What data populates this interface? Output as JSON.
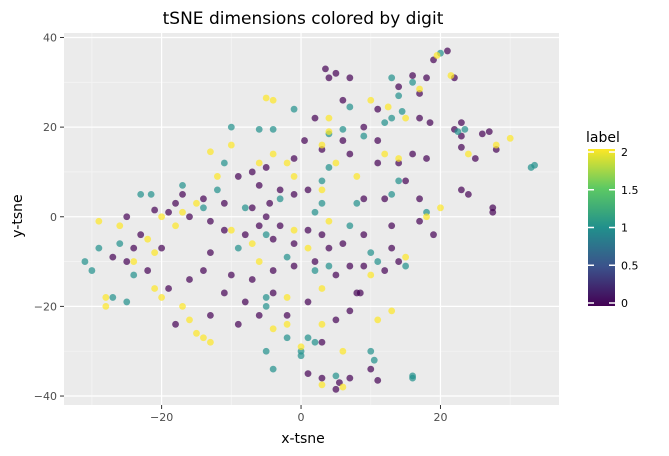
{
  "chart_data": {
    "type": "scatter",
    "title": "tSNE dimensions colored by digit",
    "xlabel": "x-tsne",
    "ylabel": "y-tsne",
    "xlim": [
      -34,
      37
    ],
    "ylim": [
      -42,
      41
    ],
    "xticks": [
      -20,
      0,
      20
    ],
    "xtick_labels": [
      "−20",
      "0",
      "20"
    ],
    "yticks": [
      -40,
      -20,
      0,
      20,
      40
    ],
    "ytick_labels": [
      "−40",
      "−20",
      "0",
      "20",
      "40"
    ],
    "grid": true,
    "legend": {
      "title": "label",
      "position": "right",
      "breaks": [
        0,
        0.5,
        1,
        1.5,
        2
      ],
      "break_labels": [
        "0",
        "0.5",
        "1",
        "1.5",
        "2"
      ],
      "range": [
        0,
        2
      ]
    },
    "colors": {
      "panel_background": "#ebebeb",
      "grid_major": "#ffffff",
      "grid_minor": "#f4f4f4",
      "label_0": "#440154",
      "label_1": "#21908c",
      "label_2": "#fde725"
    },
    "points": [
      {
        "x": 3.5,
        "y": 33,
        "label": 0
      },
      {
        "x": 5,
        "y": 32,
        "label": 0
      },
      {
        "x": 7,
        "y": 31,
        "label": 0
      },
      {
        "x": 4,
        "y": 31,
        "label": 0
      },
      {
        "x": 16,
        "y": 31.5,
        "label": 0
      },
      {
        "x": 18,
        "y": 31,
        "label": 0
      },
      {
        "x": 21,
        "y": 37,
        "label": 0
      },
      {
        "x": 19,
        "y": 35,
        "label": 0
      },
      {
        "x": 22,
        "y": 31,
        "label": 0
      },
      {
        "x": 17,
        "y": 27.5,
        "label": 0
      },
      {
        "x": 14,
        "y": 29,
        "label": 0
      },
      {
        "x": 11,
        "y": 24,
        "label": 0
      },
      {
        "x": 6,
        "y": 26,
        "label": 0
      },
      {
        "x": 2,
        "y": 22,
        "label": 0
      },
      {
        "x": 9,
        "y": 20,
        "label": 0
      },
      {
        "x": 17,
        "y": 22,
        "label": 0
      },
      {
        "x": 18.5,
        "y": 21,
        "label": 0
      },
      {
        "x": 22,
        "y": 19.5,
        "label": 0
      },
      {
        "x": 23,
        "y": 21,
        "label": 0
      },
      {
        "x": 23,
        "y": 18,
        "label": 0
      },
      {
        "x": 26,
        "y": 18.5,
        "label": 0
      },
      {
        "x": 27,
        "y": 19,
        "label": 0
      },
      {
        "x": 28,
        "y": 15,
        "label": 0
      },
      {
        "x": 25,
        "y": 13,
        "label": 0
      },
      {
        "x": 23,
        "y": 15.5,
        "label": 0
      },
      {
        "x": 11,
        "y": 17,
        "label": 0
      },
      {
        "x": 6,
        "y": 17,
        "label": 0
      },
      {
        "x": 7,
        "y": 14,
        "label": 0
      },
      {
        "x": 16,
        "y": 14,
        "label": 0
      },
      {
        "x": 18,
        "y": 13,
        "label": 0
      },
      {
        "x": 14,
        "y": 12,
        "label": 0
      },
      {
        "x": 11,
        "y": 12,
        "label": 0
      },
      {
        "x": 0.5,
        "y": 17,
        "label": 0
      },
      {
        "x": 3,
        "y": 15,
        "label": 0
      },
      {
        "x": -1,
        "y": 13,
        "label": 0
      },
      {
        "x": -5,
        "y": 11,
        "label": 0
      },
      {
        "x": -7,
        "y": 10,
        "label": 0
      },
      {
        "x": -9,
        "y": 9,
        "label": 0
      },
      {
        "x": -6,
        "y": 7,
        "label": 0
      },
      {
        "x": -3,
        "y": 6,
        "label": 0
      },
      {
        "x": -1,
        "y": 5,
        "label": 0
      },
      {
        "x": 1,
        "y": 6,
        "label": 0
      },
      {
        "x": -4.5,
        "y": 3,
        "label": 0
      },
      {
        "x": -7,
        "y": 2,
        "label": 0
      },
      {
        "x": -11,
        "y": 3,
        "label": 0
      },
      {
        "x": -14,
        "y": 4,
        "label": 0
      },
      {
        "x": -17,
        "y": 5,
        "label": 0
      },
      {
        "x": -18,
        "y": 3,
        "label": 0
      },
      {
        "x": -19,
        "y": 1,
        "label": 0
      },
      {
        "x": -16,
        "y": 0,
        "label": 0
      },
      {
        "x": -13,
        "y": -1,
        "label": 0
      },
      {
        "x": -11,
        "y": -3,
        "label": 0
      },
      {
        "x": -8,
        "y": -4,
        "label": 0
      },
      {
        "x": -6,
        "y": -2,
        "label": 0
      },
      {
        "x": -5,
        "y": 0,
        "label": 0
      },
      {
        "x": -3,
        "y": -2,
        "label": 0
      },
      {
        "x": -4,
        "y": -5,
        "label": 0
      },
      {
        "x": -1,
        "y": -6,
        "label": 0
      },
      {
        "x": 1,
        "y": -3,
        "label": 0
      },
      {
        "x": 3,
        "y": -4,
        "label": 0
      },
      {
        "x": 4,
        "y": -7,
        "label": 0
      },
      {
        "x": 6,
        "y": -6,
        "label": 0
      },
      {
        "x": 9,
        "y": -4,
        "label": 0
      },
      {
        "x": 13,
        "y": -2,
        "label": 0
      },
      {
        "x": 17,
        "y": -1,
        "label": 0
      },
      {
        "x": 19,
        "y": -4,
        "label": 0
      },
      {
        "x": 13,
        "y": -7,
        "label": 0
      },
      {
        "x": 14,
        "y": -10,
        "label": 0
      },
      {
        "x": 12,
        "y": -12,
        "label": 0
      },
      {
        "x": 9,
        "y": -11,
        "label": 0
      },
      {
        "x": 7,
        "y": -11,
        "label": 0
      },
      {
        "x": 5,
        "y": -13,
        "label": 0
      },
      {
        "x": 2,
        "y": -10,
        "label": 0
      },
      {
        "x": -1,
        "y": -11,
        "label": 0
      },
      {
        "x": -4,
        "y": -12,
        "label": 0
      },
      {
        "x": -7,
        "y": -14,
        "label": 0
      },
      {
        "x": -10,
        "y": -13,
        "label": 0
      },
      {
        "x": -14,
        "y": -12,
        "label": 0
      },
      {
        "x": -16,
        "y": -14,
        "label": 0
      },
      {
        "x": -19,
        "y": -16,
        "label": 0
      },
      {
        "x": -22,
        "y": -12,
        "label": 0
      },
      {
        "x": -25,
        "y": -10,
        "label": 0
      },
      {
        "x": -27,
        "y": -9,
        "label": 0
      },
      {
        "x": -24,
        "y": -7,
        "label": 0
      },
      {
        "x": -23,
        "y": -4,
        "label": 0
      },
      {
        "x": -21,
        "y": 1.5,
        "label": 0
      },
      {
        "x": -25,
        "y": 0,
        "label": 0
      },
      {
        "x": -20,
        "y": -7,
        "label": 0
      },
      {
        "x": -13,
        "y": -8,
        "label": 0
      },
      {
        "x": -11,
        "y": -17,
        "label": 0
      },
      {
        "x": -8,
        "y": -19,
        "label": 0
      },
      {
        "x": -6,
        "y": -22,
        "label": 0
      },
      {
        "x": -9,
        "y": -24,
        "label": 0
      },
      {
        "x": -13,
        "y": -22,
        "label": 0
      },
      {
        "x": -18,
        "y": -24,
        "label": 0
      },
      {
        "x": -4,
        "y": -17,
        "label": 0
      },
      {
        "x": -2,
        "y": -22,
        "label": 0
      },
      {
        "x": 1,
        "y": -19,
        "label": 0
      },
      {
        "x": 5,
        "y": -23,
        "label": 0
      },
      {
        "x": 7,
        "y": -21,
        "label": 0
      },
      {
        "x": 8,
        "y": -17,
        "label": 0
      },
      {
        "x": 8.5,
        "y": -17,
        "label": 0
      },
      {
        "x": 3,
        "y": -28,
        "label": 0
      },
      {
        "x": 1,
        "y": -35,
        "label": 0
      },
      {
        "x": 3,
        "y": -36,
        "label": 0
      },
      {
        "x": 5.5,
        "y": -37,
        "label": 0
      },
      {
        "x": 7,
        "y": -36,
        "label": 0
      },
      {
        "x": 10,
        "y": -34,
        "label": 0
      },
      {
        "x": 11,
        "y": -36.5,
        "label": 0
      },
      {
        "x": 5,
        "y": -38.5,
        "label": 0
      },
      {
        "x": 24,
        "y": 5,
        "label": 0
      },
      {
        "x": 23,
        "y": 6,
        "label": 0
      },
      {
        "x": 27.5,
        "y": 2,
        "label": 0
      },
      {
        "x": 27.5,
        "y": 1,
        "label": 0
      },
      {
        "x": 15,
        "y": 8,
        "label": 0
      },
      {
        "x": 17,
        "y": 4,
        "label": 0
      },
      {
        "x": 12,
        "y": 4,
        "label": 0
      },
      {
        "x": 9,
        "y": 4,
        "label": 0
      },
      {
        "x": 13,
        "y": 31,
        "label": 1
      },
      {
        "x": 20,
        "y": 36.5,
        "label": 1
      },
      {
        "x": 16,
        "y": 30,
        "label": 1
      },
      {
        "x": 14,
        "y": 27,
        "label": 1
      },
      {
        "x": 7,
        "y": 24.5,
        "label": 1
      },
      {
        "x": 14.5,
        "y": 23.5,
        "label": 1
      },
      {
        "x": 13,
        "y": 22,
        "label": 1
      },
      {
        "x": 12,
        "y": 21,
        "label": 1
      },
      {
        "x": 6,
        "y": 19.5,
        "label": 1
      },
      {
        "x": 9,
        "y": 18,
        "label": 1
      },
      {
        "x": 4,
        "y": 18.5,
        "label": 1
      },
      {
        "x": 22.5,
        "y": 19,
        "label": 1
      },
      {
        "x": 23.5,
        "y": 19.5,
        "label": 1
      },
      {
        "x": 33.5,
        "y": 11.5,
        "label": 1
      },
      {
        "x": 33,
        "y": 11,
        "label": 1
      },
      {
        "x": 14,
        "y": 8,
        "label": 1
      },
      {
        "x": 13,
        "y": 5,
        "label": 1
      },
      {
        "x": 8,
        "y": 3,
        "label": 1
      },
      {
        "x": 4,
        "y": 11,
        "label": 1
      },
      {
        "x": 3,
        "y": 8,
        "label": 1
      },
      {
        "x": 3,
        "y": 3,
        "label": 1
      },
      {
        "x": 2,
        "y": 1,
        "label": 1
      },
      {
        "x": -10,
        "y": 20,
        "label": 1
      },
      {
        "x": -6,
        "y": 19.5,
        "label": 1
      },
      {
        "x": -4,
        "y": 19.5,
        "label": 1
      },
      {
        "x": -11,
        "y": 12,
        "label": 1
      },
      {
        "x": -17,
        "y": 7,
        "label": 1
      },
      {
        "x": -23,
        "y": 5,
        "label": 1
      },
      {
        "x": -21.5,
        "y": 5,
        "label": 1
      },
      {
        "x": -14,
        "y": 2,
        "label": 1
      },
      {
        "x": -12,
        "y": 6,
        "label": 1
      },
      {
        "x": -8,
        "y": 2,
        "label": 1
      },
      {
        "x": -3,
        "y": 4,
        "label": 1
      },
      {
        "x": -5,
        "y": -4,
        "label": 1
      },
      {
        "x": -9,
        "y": -7,
        "label": 1
      },
      {
        "x": -2,
        "y": -9,
        "label": 1
      },
      {
        "x": 2,
        "y": -12,
        "label": 1
      },
      {
        "x": 4,
        "y": -11,
        "label": 1
      },
      {
        "x": 7,
        "y": -2,
        "label": 1
      },
      {
        "x": 10,
        "y": -8,
        "label": 1
      },
      {
        "x": 11,
        "y": -10,
        "label": 1
      },
      {
        "x": 15,
        "y": -11,
        "label": 1
      },
      {
        "x": 18,
        "y": 1,
        "label": 1
      },
      {
        "x": -31,
        "y": -10,
        "label": 1
      },
      {
        "x": -30,
        "y": -12,
        "label": 1
      },
      {
        "x": -29,
        "y": -7,
        "label": 1
      },
      {
        "x": -26,
        "y": -6,
        "label": 1
      },
      {
        "x": -24,
        "y": -13,
        "label": 1
      },
      {
        "x": -27,
        "y": -18,
        "label": 1
      },
      {
        "x": -25,
        "y": -19,
        "label": 1
      },
      {
        "x": -5,
        "y": -18,
        "label": 1
      },
      {
        "x": -5,
        "y": -20,
        "label": 1
      },
      {
        "x": -2,
        "y": -27,
        "label": 1
      },
      {
        "x": 1,
        "y": -27,
        "label": 1
      },
      {
        "x": 2,
        "y": -28,
        "label": 1
      },
      {
        "x": -5,
        "y": -30,
        "label": 1
      },
      {
        "x": -4,
        "y": -34,
        "label": 1
      },
      {
        "x": 0,
        "y": -30,
        "label": 1
      },
      {
        "x": 0,
        "y": -31,
        "label": 1
      },
      {
        "x": 5,
        "y": -35.5,
        "label": 1
      },
      {
        "x": 10,
        "y": -30,
        "label": 1
      },
      {
        "x": 10.5,
        "y": -32,
        "label": 1
      },
      {
        "x": 16,
        "y": -36,
        "label": 1
      },
      {
        "x": 16,
        "y": -35.5,
        "label": 1
      },
      {
        "x": -1,
        "y": 24,
        "label": 1
      },
      {
        "x": -5,
        "y": 26.5,
        "label": 2
      },
      {
        "x": -4,
        "y": 26,
        "label": 2
      },
      {
        "x": 10,
        "y": 26,
        "label": 2
      },
      {
        "x": 12.5,
        "y": 24.5,
        "label": 2
      },
      {
        "x": 17,
        "y": 28.5,
        "label": 2
      },
      {
        "x": 19.5,
        "y": 36,
        "label": 2
      },
      {
        "x": 21.5,
        "y": 31.5,
        "label": 2
      },
      {
        "x": 15,
        "y": 22,
        "label": 2
      },
      {
        "x": 4,
        "y": 22,
        "label": 2
      },
      {
        "x": 4,
        "y": 19,
        "label": 2
      },
      {
        "x": 3,
        "y": 16,
        "label": 2
      },
      {
        "x": 5,
        "y": 12,
        "label": 2
      },
      {
        "x": 3,
        "y": 6,
        "label": 2
      },
      {
        "x": -1,
        "y": 9,
        "label": 2
      },
      {
        "x": -2,
        "y": 12,
        "label": 2
      },
      {
        "x": -4,
        "y": 14,
        "label": 2
      },
      {
        "x": -6,
        "y": 12,
        "label": 2
      },
      {
        "x": -10,
        "y": 16,
        "label": 2
      },
      {
        "x": -13,
        "y": 14.5,
        "label": 2
      },
      {
        "x": -12,
        "y": 9,
        "label": 2
      },
      {
        "x": -15,
        "y": 3,
        "label": 2
      },
      {
        "x": -17,
        "y": 1,
        "label": 2
      },
      {
        "x": -18,
        "y": -2,
        "label": 2
      },
      {
        "x": -20,
        "y": 0,
        "label": 2
      },
      {
        "x": -22,
        "y": -5,
        "label": 2
      },
      {
        "x": -21,
        "y": -8,
        "label": 2
      },
      {
        "x": -24,
        "y": -10,
        "label": 2
      },
      {
        "x": -26,
        "y": -2,
        "label": 2
      },
      {
        "x": -29,
        "y": -1,
        "label": 2
      },
      {
        "x": -28,
        "y": -18,
        "label": 2
      },
      {
        "x": -28,
        "y": -20,
        "label": 2
      },
      {
        "x": -21,
        "y": -16,
        "label": 2
      },
      {
        "x": -20,
        "y": -18,
        "label": 2
      },
      {
        "x": -17,
        "y": -20,
        "label": 2
      },
      {
        "x": -16,
        "y": -23,
        "label": 2
      },
      {
        "x": -15,
        "y": -26,
        "label": 2
      },
      {
        "x": -14,
        "y": -27,
        "label": 2
      },
      {
        "x": -13,
        "y": -28,
        "label": 2
      },
      {
        "x": -10,
        "y": -3,
        "label": 2
      },
      {
        "x": -7,
        "y": -6,
        "label": 2
      },
      {
        "x": -6,
        "y": -10,
        "label": 2
      },
      {
        "x": -1,
        "y": -3,
        "label": 2
      },
      {
        "x": 1,
        "y": -7,
        "label": 2
      },
      {
        "x": 3,
        "y": -16,
        "label": 2
      },
      {
        "x": -2,
        "y": -18,
        "label": 2
      },
      {
        "x": -4,
        "y": -25,
        "label": 2
      },
      {
        "x": -2,
        "y": -24,
        "label": 2
      },
      {
        "x": 3,
        "y": -24,
        "label": 2
      },
      {
        "x": 6,
        "y": -30,
        "label": 2
      },
      {
        "x": 0,
        "y": -29,
        "label": 2
      },
      {
        "x": 3,
        "y": -37.5,
        "label": 2
      },
      {
        "x": 6,
        "y": -38,
        "label": 2
      },
      {
        "x": 11,
        "y": -23,
        "label": 2
      },
      {
        "x": 13,
        "y": -21,
        "label": 2
      },
      {
        "x": 10,
        "y": -13,
        "label": 2
      },
      {
        "x": 15,
        "y": -9,
        "label": 2
      },
      {
        "x": 18,
        "y": 0,
        "label": 2
      },
      {
        "x": 20,
        "y": 2,
        "label": 2
      },
      {
        "x": 14,
        "y": 13,
        "label": 2
      },
      {
        "x": 28,
        "y": 16,
        "label": 2
      },
      {
        "x": 30,
        "y": 17.5,
        "label": 2
      },
      {
        "x": 24,
        "y": 14,
        "label": 2
      },
      {
        "x": 12,
        "y": 14,
        "label": 2
      },
      {
        "x": 8,
        "y": 9,
        "label": 2
      },
      {
        "x": 4,
        "y": -1,
        "label": 2
      }
    ]
  }
}
